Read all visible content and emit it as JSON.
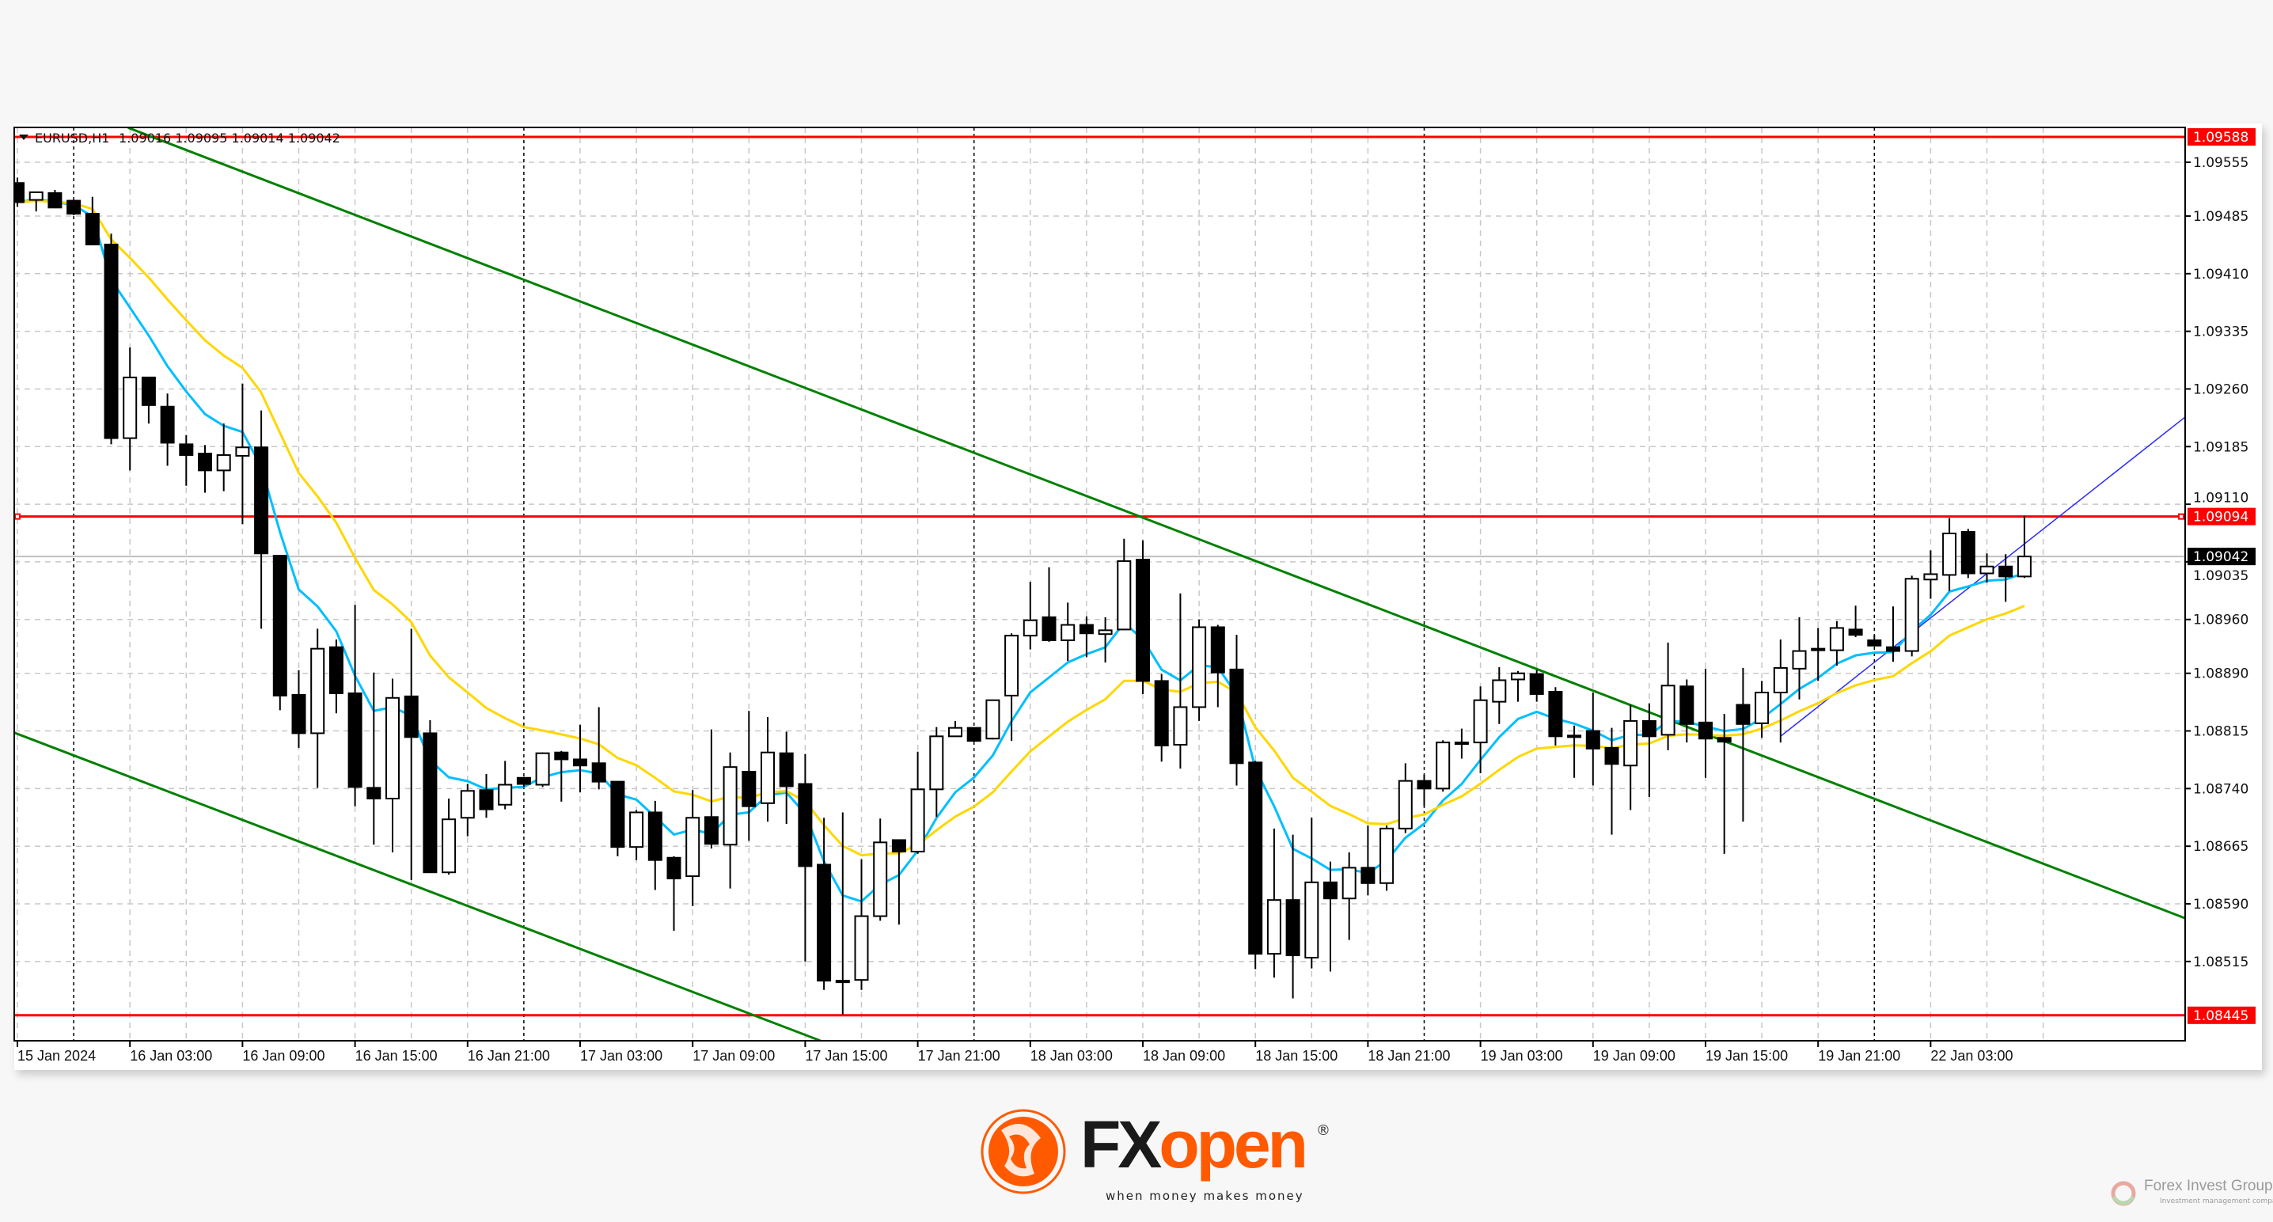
{
  "header": {
    "symbol": "EURUSD,H1",
    "ohlc": "1.09016 1.09095 1.09014 1.09042",
    "menu_icon": "triangle-down-icon"
  },
  "colors": {
    "bull_body": "#ffffff",
    "bear_body": "#000000",
    "level_line": "#ff0000",
    "channel_line": "#008000",
    "trend_line": "#2a2aff",
    "ma_fast": "#00bfff",
    "ma_slow": "#ffd700",
    "grid": "#c8c8c8",
    "brand_orange": "#ff5a00"
  },
  "chart_data": {
    "type": "candlestick",
    "title": "EURUSD,H1",
    "xlabel": "",
    "ylabel": "",
    "ylim": [
      1.08395,
      1.096
    ],
    "grid": true,
    "price_ticks": [
      "1.09555",
      "1.09485",
      "1.09410",
      "1.09335",
      "1.09260",
      "1.09185",
      "1.09110",
      "1.09035",
      "1.08960",
      "1.08890",
      "1.08815",
      "1.08740",
      "1.08665",
      "1.08590",
      "1.08515"
    ],
    "time_labels": [
      {
        "bar": 0,
        "label": "15 Jan 2024"
      },
      {
        "bar": 6,
        "label": "16 Jan 03:00"
      },
      {
        "bar": 12,
        "label": "16 Jan 09:00"
      },
      {
        "bar": 18,
        "label": "16 Jan 15:00"
      },
      {
        "bar": 24,
        "label": "16 Jan 21:00"
      },
      {
        "bar": 30,
        "label": "17 Jan 03:00"
      },
      {
        "bar": 36,
        "label": "17 Jan 09:00"
      },
      {
        "bar": 42,
        "label": "17 Jan 15:00"
      },
      {
        "bar": 48,
        "label": "17 Jan 21:00"
      },
      {
        "bar": 54,
        "label": "18 Jan 03:00"
      },
      {
        "bar": 60,
        "label": "18 Jan 09:00"
      },
      {
        "bar": 66,
        "label": "18 Jan 15:00"
      },
      {
        "bar": 72,
        "label": "18 Jan 21:00"
      },
      {
        "bar": 78,
        "label": "19 Jan 03:00"
      },
      {
        "bar": 84,
        "label": "19 Jan 09:00"
      },
      {
        "bar": 90,
        "label": "19 Jan 15:00"
      },
      {
        "bar": 96,
        "label": "19 Jan 21:00"
      },
      {
        "bar": 102,
        "label": "22 Jan 03:00"
      }
    ],
    "day_separators": [
      3,
      27,
      51,
      75,
      99
    ],
    "candles_ohlc": [
      [
        1.09528,
        1.09535,
        1.09497,
        1.09503
      ],
      [
        1.09506,
        1.09516,
        1.09491,
        1.09516
      ],
      [
        1.09515,
        1.09519,
        1.09496,
        1.09496
      ],
      [
        1.09505,
        1.09505,
        1.09486,
        1.09488
      ],
      [
        1.09488,
        1.0951,
        1.09448,
        1.09448
      ],
      [
        1.09448,
        1.09462,
        1.09188,
        1.09196
      ],
      [
        1.09196,
        1.09314,
        1.09154,
        1.09275
      ],
      [
        1.09275,
        1.09275,
        1.09215,
        1.09239
      ],
      [
        1.09237,
        1.09254,
        1.0916,
        1.0919
      ],
      [
        1.09188,
        1.092,
        1.09134,
        1.09174
      ],
      [
        1.09176,
        1.09187,
        1.09125,
        1.09154
      ],
      [
        1.09154,
        1.09215,
        1.09127,
        1.09174
      ],
      [
        1.09173,
        1.09267,
        1.09084,
        1.09184
      ],
      [
        1.09184,
        1.09232,
        1.08948,
        1.09046
      ],
      [
        1.09043,
        1.09043,
        1.08842,
        1.08861
      ],
      [
        1.08862,
        1.08894,
        1.08793,
        1.08812
      ],
      [
        1.08812,
        1.08948,
        1.08741,
        1.08922
      ],
      [
        1.08924,
        1.08934,
        1.08838,
        1.08864
      ],
      [
        1.08864,
        1.08979,
        1.08717,
        1.08742
      ],
      [
        1.08741,
        1.08891,
        1.08667,
        1.08727
      ],
      [
        1.08727,
        1.08883,
        1.08657,
        1.08858
      ],
      [
        1.0886,
        1.08948,
        1.08621,
        1.08807
      ],
      [
        1.08812,
        1.08829,
        1.08631,
        1.08631
      ],
      [
        1.08631,
        1.08727,
        1.08628,
        1.087
      ],
      [
        1.08702,
        1.08746,
        1.08678,
        1.08737
      ],
      [
        1.08738,
        1.08759,
        1.08702,
        1.08713
      ],
      [
        1.08719,
        1.08776,
        1.08713,
        1.08745
      ],
      [
        1.08754,
        1.08755,
        1.08742,
        1.08746
      ],
      [
        1.08745,
        1.08787,
        1.08742,
        1.08786
      ],
      [
        1.08787,
        1.08789,
        1.08723,
        1.08778
      ],
      [
        1.08778,
        1.08823,
        1.08735,
        1.0877
      ],
      [
        1.08773,
        1.08846,
        1.08739,
        1.08749
      ],
      [
        1.08749,
        1.08749,
        1.08652,
        1.08664
      ],
      [
        1.08664,
        1.08712,
        1.08647,
        1.08709
      ],
      [
        1.08709,
        1.08724,
        1.08608,
        1.08647
      ],
      [
        1.0865,
        1.08652,
        1.08555,
        1.08623
      ],
      [
        1.08626,
        1.08738,
        1.08587,
        1.08702
      ],
      [
        1.08703,
        1.08817,
        1.08662,
        1.08668
      ],
      [
        1.08667,
        1.08787,
        1.0861,
        1.08768
      ],
      [
        1.08762,
        1.08841,
        1.08672,
        1.08717
      ],
      [
        1.08721,
        1.08833,
        1.08697,
        1.08787
      ],
      [
        1.08786,
        1.08814,
        1.08694,
        1.08743
      ],
      [
        1.08746,
        1.08785,
        1.08515,
        1.08639
      ],
      [
        1.08641,
        1.08702,
        1.08478,
        1.0849
      ],
      [
        1.0849,
        1.08709,
        1.08446,
        1.0849
      ],
      [
        1.08491,
        1.08648,
        1.08478,
        1.08574
      ],
      [
        1.08574,
        1.08701,
        1.08568,
        1.0867
      ],
      [
        1.08673,
        1.08673,
        1.08563,
        1.08658
      ],
      [
        1.08658,
        1.08788,
        1.08655,
        1.08739
      ],
      [
        1.08739,
        1.0882,
        1.08703,
        1.08808
      ],
      [
        1.08808,
        1.08828,
        1.08808,
        1.08819
      ],
      [
        1.08819,
        1.08819,
        1.08802,
        1.08802
      ],
      [
        1.08805,
        1.08855,
        1.08804,
        1.08855
      ],
      [
        1.08861,
        1.08942,
        1.08802,
        1.08939
      ],
      [
        1.08939,
        1.09009,
        1.08921,
        1.08959
      ],
      [
        1.08963,
        1.09028,
        1.08931,
        1.08933
      ],
      [
        1.08933,
        1.08982,
        1.08906,
        1.08953
      ],
      [
        1.08953,
        1.08964,
        1.08911,
        1.08942
      ],
      [
        1.08941,
        1.08963,
        1.08904,
        1.08946
      ],
      [
        1.08947,
        1.09065,
        1.08946,
        1.09036
      ],
      [
        1.09038,
        1.09063,
        1.08863,
        1.0888
      ],
      [
        1.0888,
        1.08889,
        1.08775,
        1.08796
      ],
      [
        1.08797,
        1.08994,
        1.08766,
        1.08846
      ],
      [
        1.08846,
        1.0896,
        1.08828,
        1.0895
      ],
      [
        1.0895,
        1.08953,
        1.08846,
        1.08891
      ],
      [
        1.08895,
        1.0894,
        1.08744,
        1.08773
      ],
      [
        1.08774,
        1.08776,
        1.08505,
        1.08525
      ],
      [
        1.08525,
        1.08688,
        1.08494,
        1.08595
      ],
      [
        1.08595,
        1.0868,
        1.08467,
        1.08523
      ],
      [
        1.0852,
        1.08702,
        1.08506,
        1.08618
      ],
      [
        1.08618,
        1.08645,
        1.08502,
        1.08597
      ],
      [
        1.08597,
        1.08657,
        1.08543,
        1.08637
      ],
      [
        1.08637,
        1.08692,
        1.08601,
        1.08617
      ],
      [
        1.08617,
        1.08692,
        1.08607,
        1.08688
      ],
      [
        1.08688,
        1.08773,
        1.08682,
        1.0875
      ],
      [
        1.0875,
        1.08758,
        1.08717,
        1.0874
      ],
      [
        1.0874,
        1.08803,
        1.08736,
        1.088
      ],
      [
        1.088,
        1.08818,
        1.08779,
        1.088
      ],
      [
        1.088,
        1.08873,
        1.0876,
        1.08855
      ],
      [
        1.08853,
        1.08898,
        1.08824,
        1.08881
      ],
      [
        1.08882,
        1.08893,
        1.08853,
        1.0889
      ],
      [
        1.08889,
        1.08894,
        1.08853,
        1.08863
      ],
      [
        1.08866,
        1.08872,
        1.08796,
        1.08808
      ],
      [
        1.08809,
        1.08822,
        1.08754,
        1.08809
      ],
      [
        1.08815,
        1.08865,
        1.08744,
        1.08792
      ],
      [
        1.08793,
        1.08819,
        1.0868,
        1.08772
      ],
      [
        1.0877,
        1.08849,
        1.08712,
        1.08828
      ],
      [
        1.08828,
        1.08851,
        1.08729,
        1.08808
      ],
      [
        1.0881,
        1.0893,
        1.0879,
        1.08874
      ],
      [
        1.08873,
        1.08882,
        1.088,
        1.08824
      ],
      [
        1.08826,
        1.08896,
        1.08754,
        1.08805
      ],
      [
        1.08806,
        1.08837,
        1.08655,
        1.08801
      ],
      [
        1.08849,
        1.08897,
        1.08697,
        1.08824
      ],
      [
        1.08825,
        1.0888,
        1.08806,
        1.08865
      ],
      [
        1.08865,
        1.08934,
        1.088,
        1.08897
      ],
      [
        1.08896,
        1.08963,
        1.08856,
        1.08919
      ],
      [
        1.08922,
        1.08949,
        1.0888,
        1.0892
      ],
      [
        1.0892,
        1.08958,
        1.089,
        1.08949
      ],
      [
        1.08947,
        1.08978,
        1.08937,
        1.0894
      ],
      [
        1.08933,
        1.0894,
        1.08926,
        1.08926
      ],
      [
        1.08924,
        1.08977,
        1.08905,
        1.08919
      ],
      [
        1.08919,
        1.09017,
        1.08912,
        1.09013
      ],
      [
        1.09012,
        1.0905,
        1.08987,
        1.09019
      ],
      [
        1.09018,
        1.09092,
        1.08997,
        1.09072
      ],
      [
        1.09074,
        1.09078,
        1.09014,
        1.0902
      ],
      [
        1.0902,
        1.09046,
        1.09008,
        1.09029
      ],
      [
        1.09029,
        1.09045,
        1.08983,
        1.09016
      ],
      [
        1.09016,
        1.09095,
        1.09014,
        1.09042
      ]
    ],
    "moving_averages": [
      {
        "kind": "fast",
        "color": "#00bfff"
      },
      {
        "kind": "slow",
        "color": "#ffd700"
      }
    ],
    "horizontal_levels": [
      {
        "price": 1.09588,
        "label": "1.09588",
        "color": "#ff0000"
      },
      {
        "price": 1.09094,
        "label": "1.09094",
        "color": "#ff0000"
      },
      {
        "price": 1.08445,
        "label": "1.08445",
        "color": "#ff0000"
      }
    ],
    "current_price": {
      "price": 1.09042,
      "label": "1.09042"
    },
    "trendlines": [
      {
        "name": "channel-upper",
        "color": "#008000",
        "from": {
          "bar": 5.9,
          "price": 1.096
        },
        "to": {
          "bar": 115.6,
          "price": 1.08571
        }
      },
      {
        "name": "channel-lower",
        "color": "#008000",
        "from": {
          "bar": -0.2,
          "price": 1.08813
        },
        "to": {
          "bar": 42.8,
          "price": 1.08412
        }
      },
      {
        "name": "uptrend",
        "color": "#2a2aff",
        "from": {
          "bar": 94,
          "price": 1.08808
        },
        "to": {
          "bar": 115.6,
          "price": 1.09224
        }
      }
    ]
  },
  "branding": {
    "logo_fx": "FX",
    "logo_open": "open",
    "registered": "®",
    "tagline": "when money makes money",
    "watermark_name": "Forex Invest Group OU",
    "watermark_sub": "Investment management company"
  }
}
